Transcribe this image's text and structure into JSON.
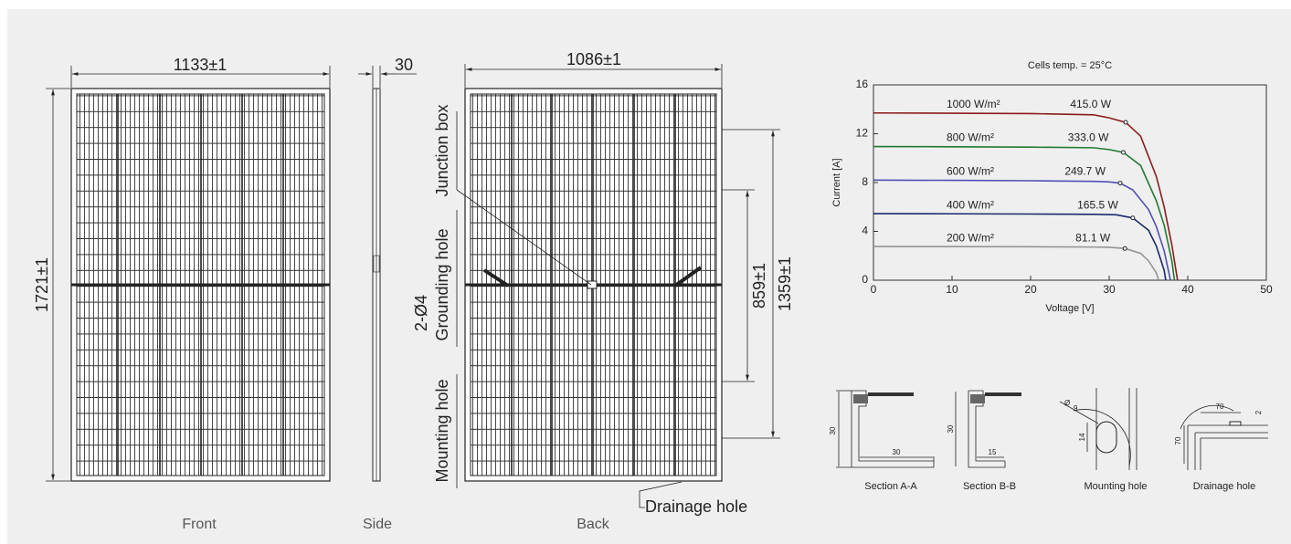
{
  "drawing": {
    "front": {
      "width": "1133±1",
      "height": "1721±1",
      "label": "Front"
    },
    "side": {
      "thickness": "30",
      "label": "Side"
    },
    "back": {
      "width": "1086±1",
      "junction_box": "Junction box",
      "grounding_hole": "Grounding hole",
      "grounding_count": "2-Ø4",
      "inner_pitch": "859±1",
      "outer_pitch": "1359±1",
      "mounting_hole": "Mounting hole",
      "drainage_hole": "Drainage hole",
      "label": "Back"
    },
    "sections": [
      {
        "label": "Section A-A",
        "dims": [
          "30",
          "30"
        ]
      },
      {
        "label": "Section B-B",
        "dims": [
          "30",
          "15"
        ]
      },
      {
        "label": "Mounting hole",
        "dims": [
          "Ø",
          "9",
          "14"
        ]
      },
      {
        "label": "Drainage hole",
        "dims": [
          "70",
          "70",
          "2"
        ]
      }
    ]
  },
  "chart_data": {
    "type": "line",
    "title": "Cells temp. = 25°C",
    "xlabel": "Voltage [V]",
    "ylabel": "Current [A]",
    "xlim": [
      0,
      50
    ],
    "xticks": [
      0,
      10,
      20,
      30,
      40,
      50
    ],
    "ylim": [
      0,
      16
    ],
    "yticks": [
      0,
      4,
      8,
      12,
      16
    ],
    "series": [
      {
        "name": "1000 W/m²",
        "annotation": "415.0 W",
        "color": "#8b1c1c",
        "x": [
          0,
          10,
          20,
          28,
          30,
          32.1,
          34,
          36,
          37,
          38,
          38.7
        ],
        "values": [
          13.7,
          13.68,
          13.65,
          13.55,
          13.3,
          12.93,
          11.8,
          8.5,
          6,
          2.8,
          0
        ]
      },
      {
        "name": "800 W/m²",
        "annotation": "333.0 W",
        "color": "#227a30",
        "x": [
          0,
          10,
          20,
          28,
          30,
          31.8,
          34,
          36,
          37,
          38,
          38.3
        ],
        "values": [
          10.95,
          10.93,
          10.9,
          10.85,
          10.7,
          10.47,
          9.4,
          6.5,
          4.5,
          1.5,
          0
        ]
      },
      {
        "name": "600 W/m²",
        "annotation": "249.7 W",
        "color": "#5050b4",
        "x": [
          0,
          10,
          20,
          28,
          30,
          31.4,
          33,
          35,
          36,
          37,
          37.8
        ],
        "values": [
          8.2,
          8.18,
          8.15,
          8.1,
          8.05,
          7.95,
          7.4,
          5.8,
          4.4,
          2.4,
          0
        ]
      },
      {
        "name": "400 W/m²",
        "annotation": "165.5 W",
        "color": "#1c2a6a",
        "x": [
          0,
          10,
          20,
          28,
          30.9,
          33,
          35,
          36,
          37,
          37.2
        ],
        "values": [
          5.45,
          5.44,
          5.42,
          5.4,
          5.36,
          5.1,
          4.1,
          2.8,
          0.8,
          0
        ]
      },
      {
        "name": "200 W/m²",
        "annotation": "81.1 W",
        "color": "#949494",
        "x": [
          0,
          10,
          20,
          28,
          30.2,
          32,
          34,
          35,
          36,
          36.3
        ],
        "values": [
          2.76,
          2.75,
          2.74,
          2.72,
          2.69,
          2.6,
          2.2,
          1.6,
          0.6,
          0
        ]
      }
    ]
  }
}
